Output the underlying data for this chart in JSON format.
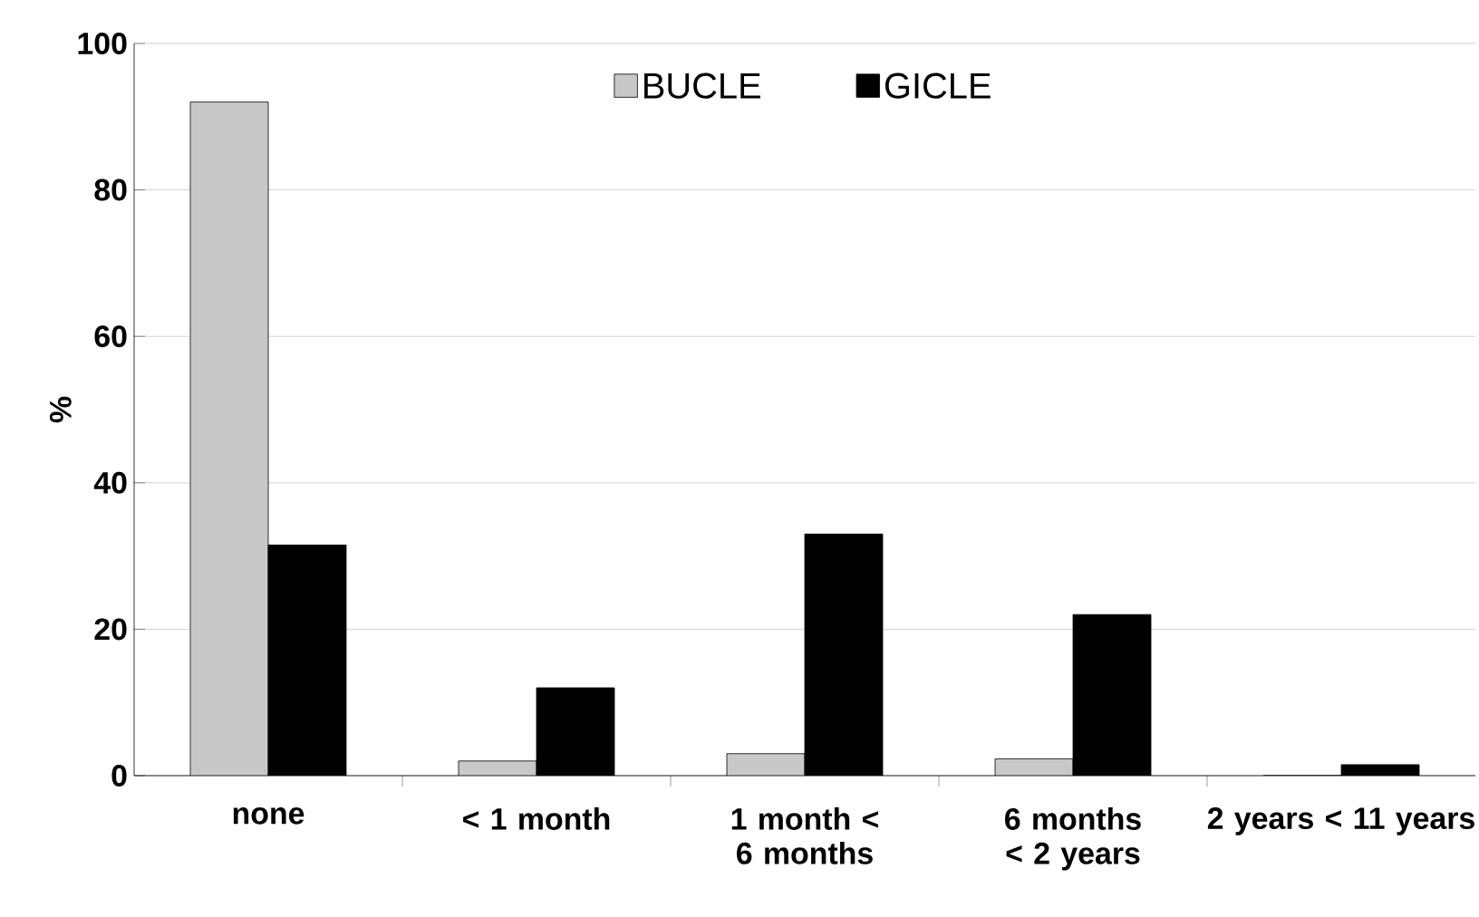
{
  "chart_data": {
    "type": "bar",
    "ylabel": "%",
    "categories": [
      "none",
      "< 1 month",
      "1 month < 6 months",
      "6 months < 2 years",
      "2 years < 11 years"
    ],
    "series": [
      {
        "name": "BUCLE",
        "color": "#c8c8c8",
        "values": [
          92,
          2,
          3,
          2.3,
          0
        ]
      },
      {
        "name": "GICLE",
        "color": "#000000",
        "values": [
          31.5,
          12,
          33,
          22,
          1.5
        ]
      }
    ],
    "ylim": [
      0,
      100
    ],
    "yticks": [
      0,
      20,
      40,
      60,
      80,
      100
    ],
    "grid": "y",
    "legend": "top"
  }
}
